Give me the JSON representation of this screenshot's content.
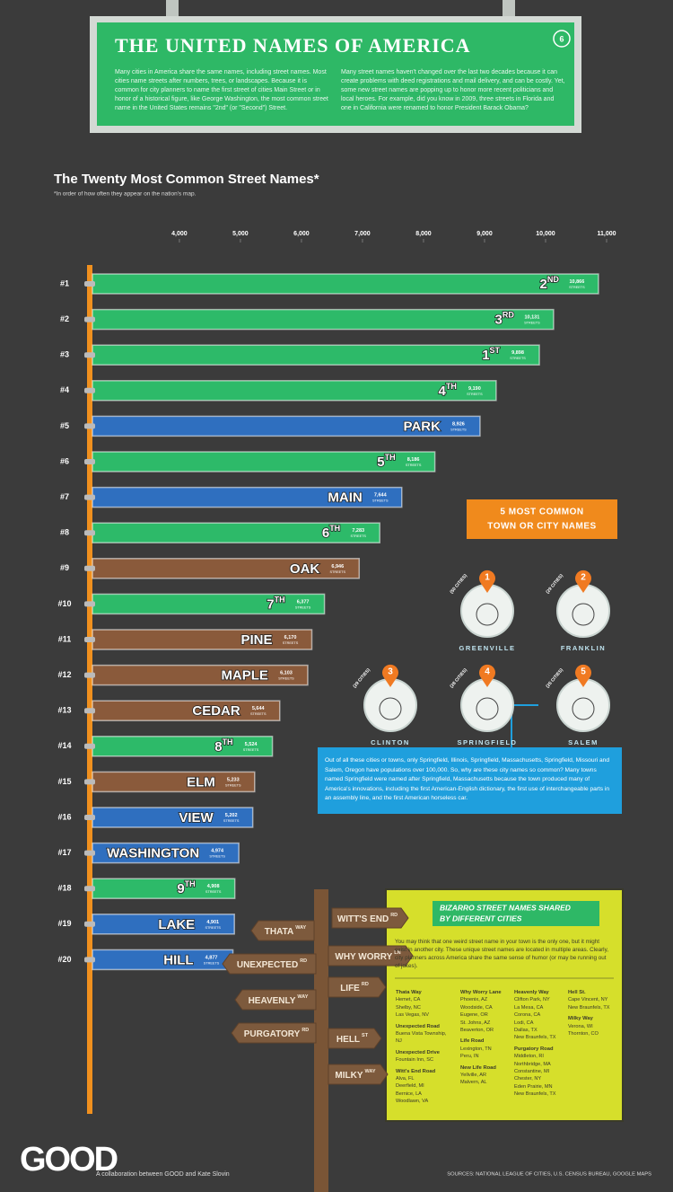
{
  "header": {
    "title": "THE UNITED NAMES OF AMERICA",
    "badge": "6",
    "paragraphs": [
      "Many cities in America share the same names, including street names. Most cities name streets after numbers, trees, or landscapes. Because it is common for city planners to name the first street of cities Main Street or in honor of a historical figure, like George Washington, the most common street name in the United States remains \"2nd\" (or \"Second\") Street.",
      "Many street names haven't changed over the last two decades because it can create problems with deed registrations and mail delivery, and can be costly. Yet, some new street names are popping up to honor more recent politicians and local heroes. For example, did you know in 2009, three streets in Florida and one in California were renamed to honor President Barack Obama?"
    ]
  },
  "chart_data": {
    "type": "bar",
    "orientation": "horizontal",
    "title": "The Twenty Most Common Street Names*",
    "subtitle": "*In order of how often they appear on the nation's map.",
    "ranks": [
      "#1",
      "#2",
      "#3",
      "#4",
      "#5",
      "#6",
      "#7",
      "#8",
      "#9",
      "#10",
      "#11",
      "#12",
      "#13",
      "#14",
      "#15",
      "#16",
      "#17",
      "#18",
      "#19",
      "#20"
    ],
    "categories": [
      "2",
      "3",
      "1",
      "4",
      "PARK",
      "5",
      "MAIN",
      "6",
      "OAK",
      "7",
      "PINE",
      "MAPLE",
      "CEDAR",
      "8",
      "ELM",
      "VIEW",
      "WASHINGTON",
      "9",
      "LAKE",
      "HILL"
    ],
    "suffixes": [
      "ND",
      "RD",
      "ST",
      "TH",
      null,
      "TH",
      null,
      "TH",
      null,
      "TH",
      null,
      null,
      null,
      "TH",
      null,
      null,
      null,
      "TH",
      null,
      null
    ],
    "values": [
      10866,
      10131,
      9898,
      9190,
      8926,
      8186,
      7644,
      7283,
      6946,
      6377,
      6170,
      6103,
      5644,
      5524,
      5233,
      5202,
      4974,
      4908,
      4901,
      4877
    ],
    "value_labels": [
      "10,866",
      "10,131",
      "9,898",
      "9,190",
      "8,926",
      "8,186",
      "7,644",
      "7,283",
      "6,946",
      "6,377",
      "6,170",
      "6,103",
      "5,644",
      "5,524",
      "5,233",
      "5,202",
      "4,974",
      "4,908",
      "4,901",
      "4,877"
    ],
    "value_unit": "STREETS",
    "colors": [
      "#2dba69",
      "#2dba69",
      "#2dba69",
      "#2dba69",
      "#2f6fbf",
      "#2dba69",
      "#2f6fbf",
      "#2dba69",
      "#8a5a3b",
      "#2dba69",
      "#8a5a3b",
      "#8a5a3b",
      "#8a5a3b",
      "#2dba69",
      "#8a5a3b",
      "#2f6fbf",
      "#2f6fbf",
      "#2dba69",
      "#2f6fbf",
      "#2f6fbf"
    ],
    "xlim": [
      2575,
      11000
    ],
    "xticks": [
      {
        "value": 4000,
        "label": "4,000"
      },
      {
        "value": 5000,
        "label": "5,000"
      },
      {
        "value": 6000,
        "label": "6,000"
      },
      {
        "value": 7000,
        "label": "7,000"
      },
      {
        "value": 8000,
        "label": "8,000"
      },
      {
        "value": 9000,
        "label": "9,000"
      },
      {
        "value": 10000,
        "label": "10,000"
      },
      {
        "value": 11000,
        "label": "11,000"
      }
    ]
  },
  "towns": {
    "title_lines": [
      "5 MOST COMMON",
      "TOWN OR CITY NAMES"
    ],
    "items": [
      {
        "rank": "1",
        "name": "GREENVILLE",
        "count": "(50 CITIES)"
      },
      {
        "rank": "2",
        "name": "FRANKLIN",
        "count": "(29 CITIES)"
      },
      {
        "rank": "3",
        "name": "CLINTON",
        "count": "(29 CITIES)"
      },
      {
        "rank": "4",
        "name": "SPRINGFIELD",
        "count": "(28 CITIES)"
      },
      {
        "rank": "5",
        "name": "SALEM",
        "count": "(25 CITIES)"
      }
    ],
    "note": "Out of all these cities or towns, only Springfield, Illinois, Springfield, Massachusetts, Springfield, Missouri and Salem, Oregon have populations over 100,000. So, why are these city names so common? Many towns named Springfield were named after Springfield, Massachusetts because the town produced many of America's innovations, including the first American-English dictionary, the first use of interchangeable parts in an assembly line, and the first American horseless car."
  },
  "signpost": [
    {
      "name": "WITT'S END",
      "suffix": "RD"
    },
    {
      "name": "THATA",
      "suffix": "WAY"
    },
    {
      "name": "WHY WORRY",
      "suffix": "LN"
    },
    {
      "name": "UNEXPECTED",
      "suffix": "RD"
    },
    {
      "name": "LIFE",
      "suffix": "RD"
    },
    {
      "name": "HEAVENLY",
      "suffix": "WAY"
    },
    {
      "name": "PURGATORY",
      "suffix": "RD"
    },
    {
      "name": "HELL",
      "suffix": "ST"
    },
    {
      "name": "MILKY",
      "suffix": "WAY"
    }
  ],
  "bizarro": {
    "title_lines": [
      "BIZARRO STREET NAMES SHARED",
      "BY DIFFERENT CITIES"
    ],
    "intro": "You may think that one weird street name in your town is the only one, but it might exist in another city. These unique street names are located in multiple areas. Clearly, city planners across America share the same sense of humor (or may be running out of jokes).",
    "columns": [
      [
        {
          "street": "Thata Way",
          "cities": [
            "Hemet, CA",
            "Shelby, NC",
            "Las Vegas, NV"
          ]
        },
        {
          "street": "Unexpected Road",
          "cities": [
            "Buena Vista Township, NJ"
          ]
        },
        {
          "street": "Unexpected Drive",
          "cities": [
            "Fountain Inn, SC"
          ]
        },
        {
          "street": "Witt's End Road",
          "cities": [
            "Alva, FL",
            "Deerfield, MI",
            "Bernice, LA",
            "Woodlawn, VA"
          ]
        }
      ],
      [
        {
          "street": "Why Worry Lane",
          "cities": [
            "Phoenix, AZ",
            "Woodside, CA",
            "Eugene, OR",
            "St. Johns, AZ",
            "Beaverton, OR"
          ]
        },
        {
          "street": "Life Road",
          "cities": [
            "Lexington, TN",
            "Peru, IN"
          ]
        },
        {
          "street": "New Life Road",
          "cities": [
            "Yellville, AR",
            "Malvern, AL"
          ]
        }
      ],
      [
        {
          "street": "Heavenly Way",
          "cities": [
            "Clifton Park, NY",
            "La Mesa, CA",
            "Corona, CA",
            "Lodi, CA",
            "Dallas, TX",
            "New Braunfels, TX"
          ]
        },
        {
          "street": "Purgatory Road",
          "cities": [
            "Middleton, RI",
            "Northbridge, MA",
            "Constantine, MI",
            "Chester, NY",
            "Eden Prairie, MN",
            "New Braunfels, TX"
          ]
        }
      ],
      [
        {
          "street": "Hell St.",
          "cities": [
            "Cape Vincent, NY",
            "New Braunfels, TX"
          ]
        },
        {
          "street": "Milky Way",
          "cities": [
            "Verona, WI",
            "Thornton, CO"
          ]
        }
      ]
    ]
  },
  "footer": {
    "logo": "GOOD",
    "credit": "A collaboration between GOOD and Kate Slovin",
    "sources": "SOURCES: NATIONAL LEAGUE OF CITIES, U.S. CENSUS BUREAU, GOOGLE MAPS"
  }
}
